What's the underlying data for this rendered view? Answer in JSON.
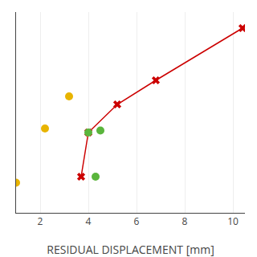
{
  "chart_data": {
    "type": "scatter",
    "xlabel": "RESIDUAL DISPLACEMENT [mm]",
    "xlim": [
      1,
      10.5
    ],
    "ylim": [
      0,
      10
    ],
    "xticks": [
      2,
      4,
      6,
      8,
      10
    ],
    "yticks": [],
    "grid": true,
    "tick_labels": "x",
    "series": [
      {
        "type": "line",
        "color": "#cc0000",
        "marker": "x",
        "x": [
          3.7,
          4.0,
          5.2,
          6.8,
          10.4
        ],
        "values": [
          1.8,
          4.0,
          5.4,
          6.6,
          9.2
        ]
      },
      {
        "type": "scatter",
        "color": "#e8b400",
        "marker": "circle",
        "x": [
          1.0,
          2.2,
          3.2
        ],
        "values": [
          1.5,
          4.2,
          5.8
        ]
      },
      {
        "type": "scatter",
        "color": "#5ab53c",
        "marker": "circle",
        "x": [
          4.3,
          4.0,
          4.5
        ],
        "values": [
          1.8,
          4.0,
          4.1
        ]
      }
    ]
  }
}
